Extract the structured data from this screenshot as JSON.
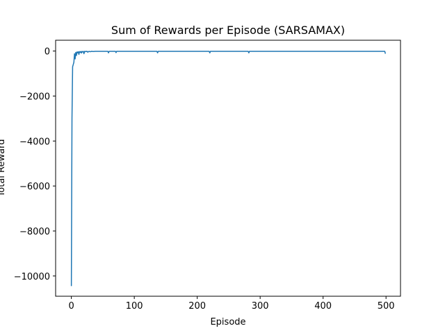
{
  "chart_data": {
    "type": "line",
    "title": "Sum of Rewards per Episode (SARSAMAX)",
    "xlabel": "Episode",
    "ylabel": "Total Reward",
    "xlim": [
      -25,
      523
    ],
    "ylim": [
      -10900,
      480
    ],
    "xticks": [
      0,
      100,
      200,
      300,
      400,
      500
    ],
    "yticks": [
      0,
      -2000,
      -4000,
      -6000,
      -8000,
      -10000
    ],
    "grid": false,
    "series": [
      {
        "color": "#1f77b4",
        "points": [
          [
            0,
            -10450
          ],
          [
            1,
            -3000
          ],
          [
            2,
            -700
          ],
          [
            3,
            -600
          ],
          [
            4,
            -500
          ],
          [
            5,
            -120
          ],
          [
            6,
            -350
          ],
          [
            7,
            -60
          ],
          [
            8,
            -200
          ],
          [
            9,
            -40
          ],
          [
            10,
            -80
          ],
          [
            11,
            -30
          ],
          [
            12,
            -150
          ],
          [
            13,
            -25
          ],
          [
            14,
            -60
          ],
          [
            15,
            -20
          ],
          [
            16,
            -90
          ],
          [
            17,
            -18
          ],
          [
            18,
            -40
          ],
          [
            19,
            -16
          ],
          [
            20,
            -120
          ],
          [
            21,
            -15
          ],
          [
            22,
            -30
          ],
          [
            23,
            -14
          ],
          [
            24,
            -20
          ],
          [
            25,
            -13
          ],
          [
            26,
            -50
          ],
          [
            28,
            -13
          ],
          [
            30,
            -30
          ],
          [
            32,
            -13
          ],
          [
            35,
            -20
          ],
          [
            38,
            -13
          ],
          [
            40,
            -15
          ],
          [
            45,
            -13
          ],
          [
            50,
            -13
          ],
          [
            55,
            -13
          ],
          [
            58,
            -13
          ],
          [
            59,
            -80
          ],
          [
            60,
            -13
          ],
          [
            70,
            -13
          ],
          [
            71,
            -70
          ],
          [
            72,
            -13
          ],
          [
            100,
            -13
          ],
          [
            136,
            -13
          ],
          [
            137,
            -80
          ],
          [
            138,
            -13
          ],
          [
            180,
            -13
          ],
          [
            219,
            -13
          ],
          [
            220,
            -80
          ],
          [
            221,
            -13
          ],
          [
            250,
            -13
          ],
          [
            281,
            -13
          ],
          [
            282,
            -80
          ],
          [
            283,
            -13
          ],
          [
            350,
            -13
          ],
          [
            400,
            -13
          ],
          [
            450,
            -13
          ],
          [
            497,
            -13
          ],
          [
            498,
            -13
          ],
          [
            499,
            -120
          ]
        ]
      }
    ]
  }
}
